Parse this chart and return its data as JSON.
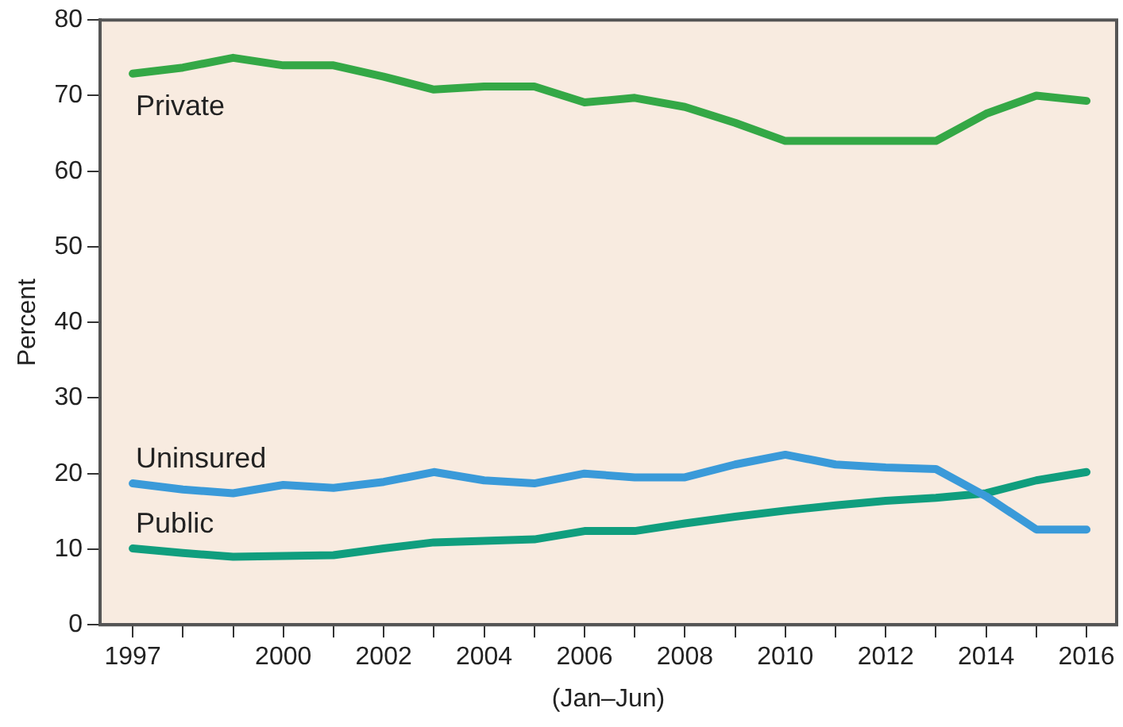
{
  "chart_data": {
    "type": "line",
    "ylabel": "Percent",
    "xlabel": "(Jan–Jun)",
    "x": [
      1997,
      1998,
      1999,
      2000,
      2001,
      2002,
      2003,
      2004,
      2005,
      2006,
      2007,
      2008,
      2009,
      2010,
      2011,
      2012,
      2013,
      2014,
      2015,
      2016
    ],
    "series": [
      {
        "name": "Private",
        "color": "#34a846",
        "values": [
          72.9,
          73.7,
          75,
          74,
          74,
          72.5,
          70.8,
          71.2,
          71.2,
          69.1,
          69.7,
          68.5,
          66.4,
          64,
          64,
          64,
          64,
          67.6,
          70,
          69.3
        ]
      },
      {
        "name": "Uninsured",
        "color": "#3a9ad9",
        "values": [
          18.7,
          17.9,
          17.4,
          18.5,
          18.1,
          18.9,
          20.2,
          19.1,
          18.7,
          20,
          19.5,
          19.5,
          21.2,
          22.5,
          21.2,
          20.8,
          20.6,
          17,
          12.6,
          12.6
        ]
      },
      {
        "name": "Public",
        "color": "#109e7e",
        "values": [
          10.1,
          9.5,
          9,
          9.1,
          9.2,
          10.1,
          10.9,
          11.1,
          11.3,
          12.4,
          12.4,
          13.4,
          14.3,
          15.1,
          15.8,
          16.4,
          16.8,
          17.4,
          19.1,
          20.2
        ]
      }
    ],
    "xlim": [
      1996.35,
      2016.6
    ],
    "xticks": [
      1997,
      {
        "value": 1998,
        "label": null
      },
      {
        "value": 1999,
        "label": null
      },
      2000,
      {
        "value": 2001,
        "label": null
      },
      2002,
      {
        "value": 2003,
        "label": null
      },
      2004,
      {
        "value": 2005,
        "label": null
      },
      2006,
      {
        "value": 2007,
        "label": null
      },
      2008,
      {
        "value": 2009,
        "label": null
      },
      2010,
      {
        "value": 2011,
        "label": null
      },
      2012,
      {
        "value": 2013,
        "label": null
      },
      2014,
      {
        "value": 2015,
        "label": null
      },
      2016
    ],
    "ylim": [
      0,
      80
    ],
    "yticks": [
      0,
      10,
      20,
      30,
      40,
      50,
      60,
      70,
      80
    ],
    "grid": false,
    "legend": false,
    "marker": "none",
    "line_style": "solid"
  }
}
